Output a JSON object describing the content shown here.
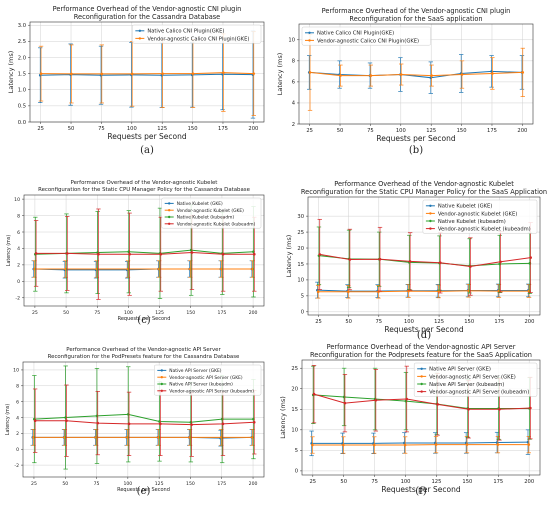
{
  "chart_data": [
    {
      "panel": "(a)",
      "type": "line",
      "title": "Performance Overhead of the Vendor-agnostic CNI plugin\nReconfiguration for the Cassandra Database",
      "xlabel": "Requests per Second",
      "ylabel": "Latency (ms)",
      "x": [
        25,
        50,
        75,
        100,
        125,
        150,
        175,
        200
      ],
      "ylim": [
        0,
        3.1
      ],
      "yticks": [
        0.0,
        0.5,
        1.0,
        1.5,
        2.0,
        2.5,
        3.0
      ],
      "ytick_labels": [
        "0.0",
        "0.5",
        "1.0",
        "1.5",
        "2.0",
        "2.5",
        "3.0"
      ],
      "legend": "top-right",
      "grid": true,
      "series": [
        {
          "name": "Native Calico CNI Plugin(GKE)",
          "color": "#1f77b4",
          "values": [
            1.45,
            1.47,
            1.45,
            1.46,
            1.45,
            1.46,
            1.48,
            1.47
          ],
          "errors": [
            0.85,
            0.95,
            0.9,
            1.0,
            1.0,
            1.0,
            1.1,
            1.35
          ]
        },
        {
          "name": "Vendor-agnostic Calico CNI Plugin(GKE)",
          "color": "#ff7f0e",
          "values": [
            1.5,
            1.49,
            1.49,
            1.49,
            1.5,
            1.5,
            1.53,
            1.5
          ],
          "errors": [
            0.85,
            0.9,
            0.9,
            1.0,
            1.05,
            1.05,
            1.2,
            1.3
          ]
        }
      ]
    },
    {
      "panel": "(b)",
      "type": "line",
      "title": "Performance Overhead of the Vendor-agnostic CNI plugin\nReconfiguration for the SaaS application",
      "xlabel": "Requests per Second",
      "ylabel": "Latency (ms)",
      "x": [
        25,
        50,
        75,
        100,
        125,
        150,
        175,
        200
      ],
      "ylim": [
        2,
        11.5
      ],
      "yticks": [
        2,
        4,
        6,
        8,
        10
      ],
      "ytick_labels": [
        "2",
        "4",
        "6",
        "8",
        "10"
      ],
      "legend": "top-left",
      "grid": true,
      "series": [
        {
          "name": "Native Calico CNI Plugin(GKE)",
          "color": "#1f77b4",
          "values": [
            6.9,
            6.7,
            6.6,
            6.7,
            6.4,
            6.8,
            7.0,
            6.9
          ],
          "errors": [
            1.6,
            1.3,
            1.2,
            1.6,
            1.5,
            1.8,
            1.5,
            1.6
          ]
        },
        {
          "name": "Vendor-agnostic Calico CNI Plugin(GKE)",
          "color": "#ff7f0e",
          "values": [
            6.9,
            6.6,
            6.6,
            6.7,
            6.6,
            6.7,
            6.8,
            6.9
          ],
          "errors": [
            3.6,
            1.0,
            1.0,
            1.0,
            1.0,
            1.3,
            1.5,
            2.3
          ]
        }
      ]
    },
    {
      "panel": "(c)",
      "type": "line",
      "title": "Performance Overhead of the Vendor-agnostic Kubelet\nReconfiguration for the Static CPU Manager Policy for the Cassandra Database",
      "xlabel": "Requests per Second",
      "ylabel": "Latency (ms)",
      "x": [
        25,
        50,
        75,
        100,
        125,
        150,
        175,
        200
      ],
      "ylim": [
        -3,
        10.5
      ],
      "yticks": [
        -2,
        0,
        2,
        4,
        6,
        8,
        10
      ],
      "ytick_labels": [
        "-2",
        "0",
        "2",
        "4",
        "6",
        "8",
        "10"
      ],
      "legend": "top-right",
      "grid": true,
      "series": [
        {
          "name": "Native Kubelet (GKE)",
          "color": "#1f77b4",
          "values": [
            1.5,
            1.4,
            1.4,
            1.4,
            1.5,
            1.5,
            1.5,
            1.5
          ],
          "errors": [
            1.0,
            1.0,
            1.0,
            1.0,
            1.0,
            1.0,
            1.0,
            1.0
          ]
        },
        {
          "name": "Vendor-agnostic Kubelet (GKE)",
          "color": "#ff7f0e",
          "values": [
            1.5,
            1.5,
            1.5,
            1.5,
            1.5,
            1.5,
            1.5,
            1.5
          ],
          "errors": [
            1.0,
            1.0,
            1.0,
            1.0,
            1.0,
            1.0,
            1.0,
            1.0
          ]
        },
        {
          "name": "Native Kubelet (kubeadm)",
          "color": "#2ca02c",
          "values": [
            3.3,
            3.4,
            3.5,
            3.6,
            3.4,
            3.8,
            3.4,
            3.6
          ],
          "errors": [
            4.5,
            4.8,
            5.0,
            5.0,
            5.5,
            5.5,
            5.0,
            5.5
          ]
        },
        {
          "name": "Vendor-agnostic Kubelet (kubeadm)",
          "color": "#d62728",
          "values": [
            3.4,
            3.4,
            3.3,
            3.3,
            3.3,
            3.5,
            3.3,
            3.3
          ],
          "errors": [
            4.0,
            4.5,
            5.5,
            5.0,
            4.5,
            4.5,
            4.5,
            4.5
          ]
        }
      ]
    },
    {
      "panel": "(d)",
      "type": "line",
      "title": "Performance Overhead of the Vendor-agnostic Kubelet\nReconfiguration for the Static CPU Manager Policy for the SaaS Application",
      "xlabel": "Requests per Second",
      "ylabel": "Latency (ms)",
      "x": [
        25,
        50,
        75,
        100,
        125,
        150,
        175,
        200
      ],
      "ylim": [
        -1,
        36
      ],
      "yticks": [
        0,
        5,
        10,
        15,
        20,
        25,
        30
      ],
      "ytick_labels": [
        "0",
        "5",
        "10",
        "15",
        "20",
        "25",
        "30"
      ],
      "legend": "top-right",
      "grid": true,
      "series": [
        {
          "name": "Native Kubelet (GKE)",
          "color": "#1f77b4",
          "values": [
            6.8,
            6.5,
            6.5,
            6.6,
            6.6,
            6.7,
            6.7,
            6.7
          ],
          "errors": [
            2.5,
            2.0,
            2.0,
            2.0,
            2.0,
            2.0,
            2.0,
            2.0
          ]
        },
        {
          "name": "Vendor-agnostic Kubelet (GKE)",
          "color": "#ff7f0e",
          "values": [
            6.3,
            6.3,
            6.3,
            6.5,
            6.4,
            6.6,
            6.5,
            6.5
          ],
          "errors": [
            2.0,
            2.0,
            2.0,
            2.0,
            2.0,
            2.0,
            2.0,
            2.0
          ]
        },
        {
          "name": "Native Kubelet (kubeadm)",
          "color": "#2ca02c",
          "values": [
            17.6,
            16.6,
            16.5,
            15.5,
            15.3,
            14.4,
            15.0,
            15.2
          ],
          "errors": [
            9.0,
            9.0,
            8.5,
            8.5,
            8.5,
            8.5,
            9.0,
            9.5
          ]
        },
        {
          "name": "Vendor-agnostic Kubelet (kubeadm)",
          "color": "#d62728",
          "values": [
            18.0,
            16.4,
            16.5,
            15.8,
            15.4,
            14.2,
            15.7,
            17.0
          ],
          "errors": [
            11.0,
            9.5,
            10.0,
            9.0,
            9.5,
            9.0,
            9.5,
            11.0
          ]
        }
      ]
    },
    {
      "panel": "(e)",
      "type": "line",
      "title": "Performance Overhead of the Vendor-agnostic API Server\nReconfiguration for the PodPresets feature for the Cassandra Database",
      "xlabel": "Requests per Second",
      "ylabel": "Latency (ms)",
      "x": [
        25,
        50,
        75,
        100,
        125,
        150,
        175,
        200
      ],
      "ylim": [
        -3.5,
        11
      ],
      "yticks": [
        -2,
        0,
        2,
        4,
        6,
        8,
        10
      ],
      "ytick_labels": [
        "-2",
        "0",
        "2",
        "4",
        "6",
        "8",
        "10"
      ],
      "legend": "top-right",
      "grid": true,
      "series": [
        {
          "name": "Native API Server (GKE)",
          "color": "#1f77b4",
          "values": [
            1.5,
            1.5,
            1.5,
            1.5,
            1.5,
            1.5,
            1.4,
            1.5
          ],
          "errors": [
            1.0,
            1.0,
            1.0,
            1.0,
            1.0,
            1.0,
            1.0,
            1.0
          ]
        },
        {
          "name": "Vendor-agnostic API Server (GKE)",
          "color": "#ff7f0e",
          "values": [
            1.5,
            1.5,
            1.5,
            1.5,
            1.5,
            1.5,
            1.5,
            1.5
          ],
          "errors": [
            1.0,
            1.0,
            1.0,
            1.0,
            1.0,
            1.0,
            1.0,
            1.0
          ]
        },
        {
          "name": "Native API Server (kubeadm)",
          "color": "#2ca02c",
          "values": [
            3.8,
            4.0,
            4.2,
            4.4,
            3.5,
            3.4,
            3.8,
            3.8
          ],
          "errors": [
            5.5,
            6.5,
            6.0,
            6.0,
            5.0,
            5.0,
            5.5,
            5.0
          ]
        },
        {
          "name": "Vendor-agnostic API Server (kubeadm)",
          "color": "#d62728",
          "values": [
            3.6,
            3.6,
            3.3,
            3.2,
            3.2,
            3.1,
            3.2,
            3.4
          ],
          "errors": [
            4.0,
            4.5,
            4.0,
            4.0,
            4.0,
            4.0,
            4.0,
            4.0
          ]
        }
      ]
    },
    {
      "panel": "(f)",
      "type": "line",
      "title": "Performance Overhead of the Vendor-agnostic API Server\nReconfiguration for the Podpresets feature for the SaaS Application",
      "xlabel": "Requests per Second",
      "ylabel": "Latency (ms)",
      "x": [
        25,
        50,
        75,
        100,
        125,
        150,
        175,
        200
      ],
      "ylim": [
        -1,
        27
      ],
      "yticks": [
        0,
        5,
        10,
        15,
        20,
        25
      ],
      "ytick_labels": [
        "0",
        "5",
        "10",
        "15",
        "20",
        "25"
      ],
      "legend": "top-right",
      "grid": true,
      "series": [
        {
          "name": "Native API Server (GKE)",
          "color": "#1f77b4",
          "values": [
            6.7,
            6.7,
            6.7,
            6.8,
            6.8,
            6.8,
            6.9,
            7.0
          ],
          "errors": [
            3.0,
            2.5,
            2.5,
            2.5,
            2.5,
            2.5,
            2.5,
            3.0
          ]
        },
        {
          "name": "Vendor-agnostic API Server (GKE)",
          "color": "#ff7f0e",
          "values": [
            6.3,
            6.3,
            6.3,
            6.3,
            6.4,
            6.4,
            6.4,
            6.4
          ],
          "errors": [
            2.0,
            2.0,
            2.0,
            2.0,
            2.0,
            2.0,
            2.0,
            2.0
          ]
        },
        {
          "name": "Native API Server (kubeadm)",
          "color": "#2ca02c",
          "values": [
            18.5,
            18.0,
            17.5,
            17.0,
            16.3,
            15.2,
            15.2,
            15.2
          ],
          "errors": [
            7.0,
            7.0,
            7.5,
            7.0,
            7.5,
            7.0,
            7.5,
            7.5
          ]
        },
        {
          "name": "Vendor-agnostic API Server (kubeadm)",
          "color": "#d62728",
          "values": [
            18.7,
            16.5,
            17.2,
            17.5,
            16.2,
            15.0,
            15.0,
            15.3
          ],
          "errors": [
            7.0,
            7.0,
            7.5,
            8.0,
            7.5,
            7.0,
            7.5,
            7.5
          ]
        }
      ]
    }
  ]
}
